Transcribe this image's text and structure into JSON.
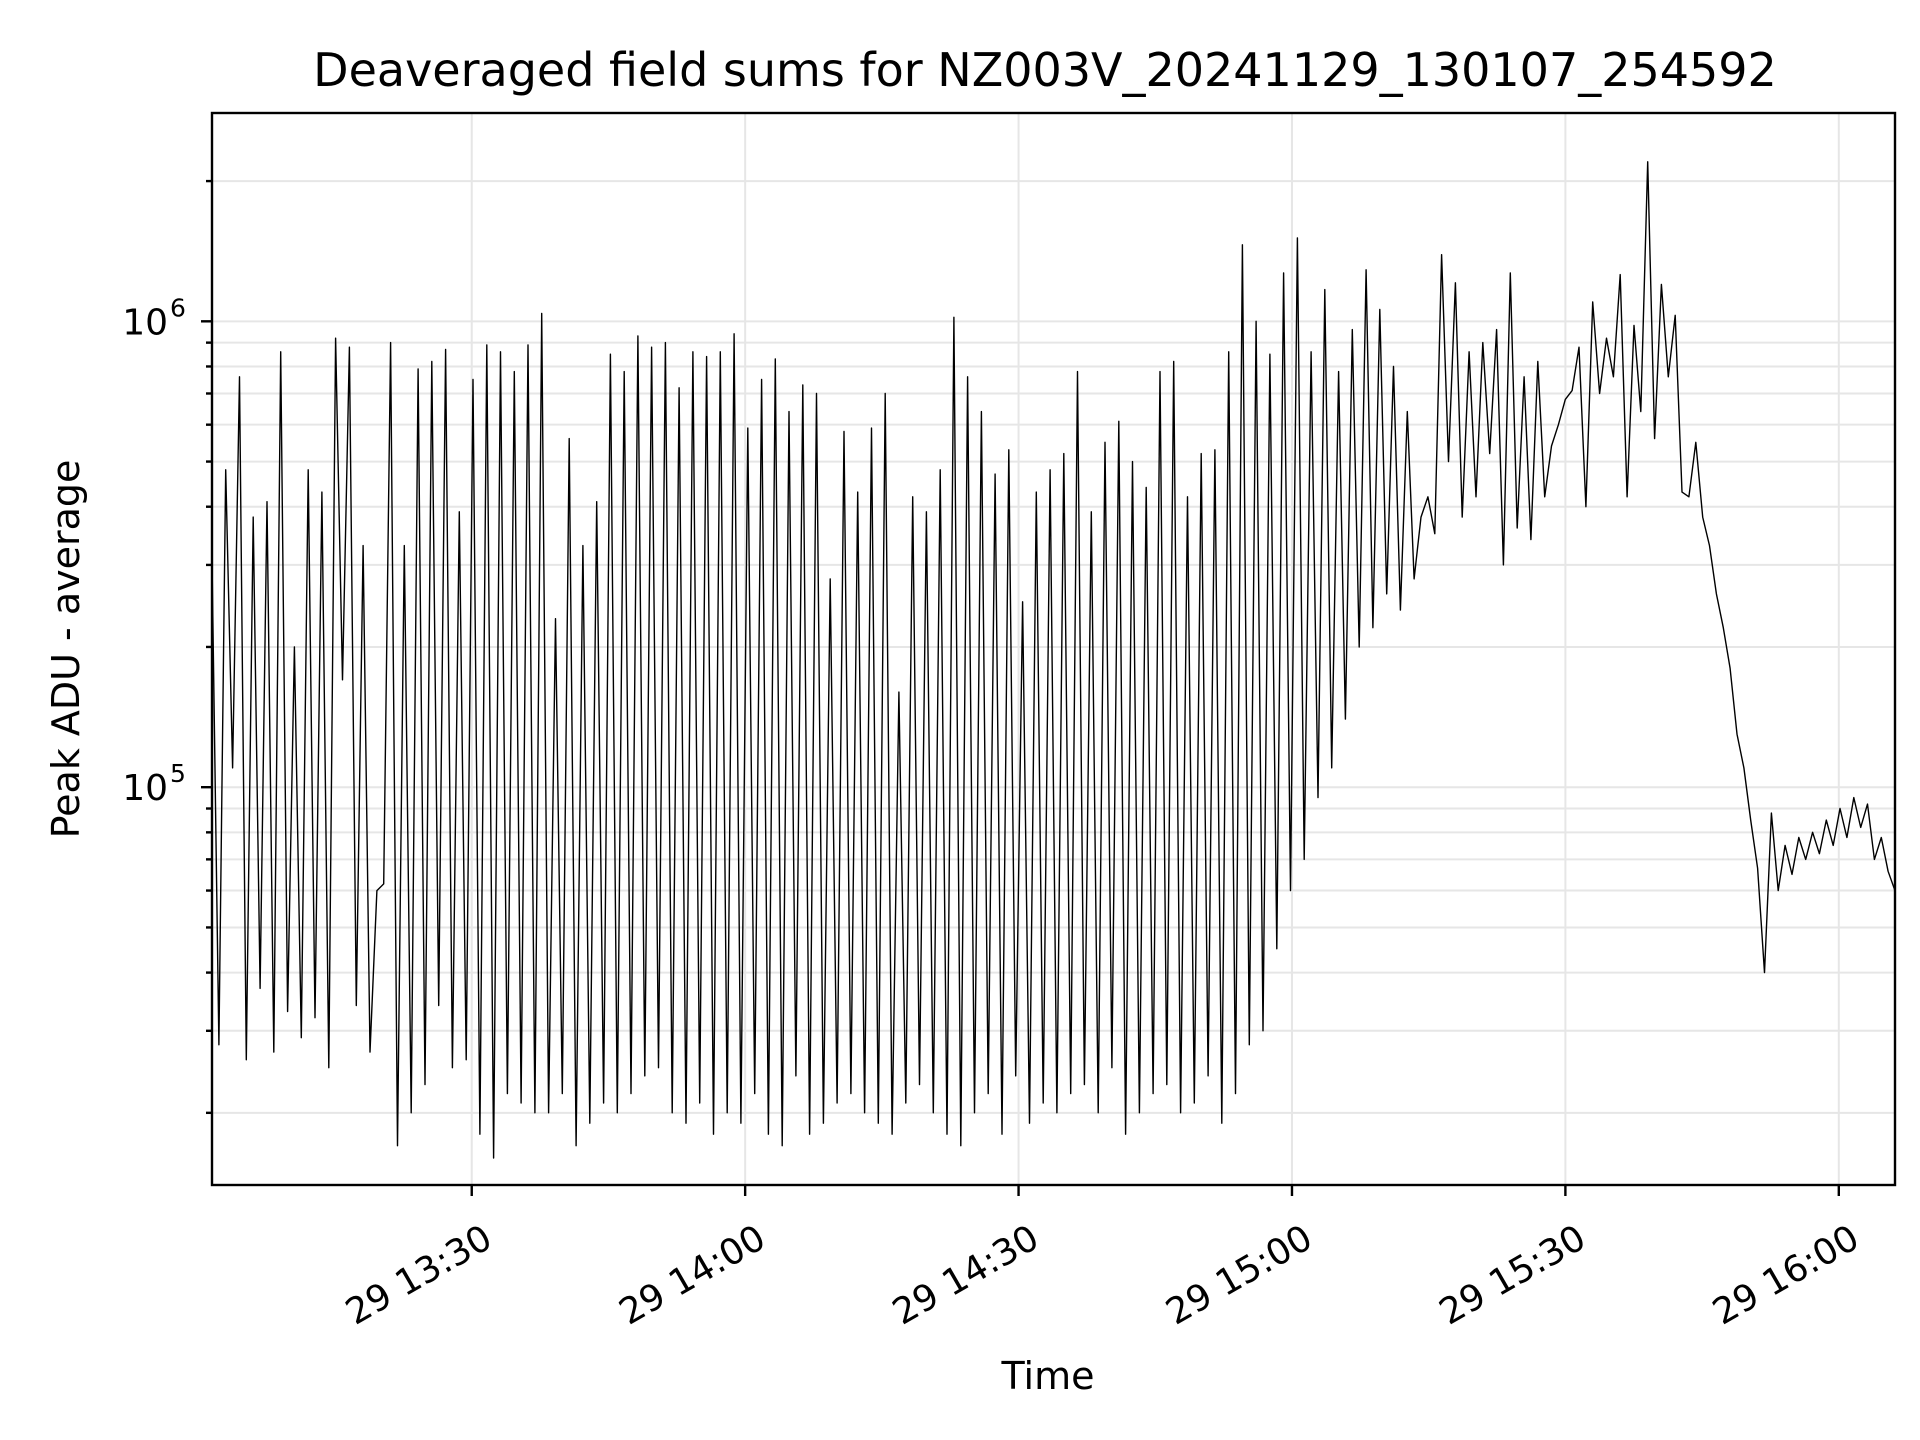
{
  "chart_data": {
    "type": "line",
    "title": "Deaveraged field sums for NZ003V_20241129_130107_254592",
    "xlabel": "Time",
    "ylabel": "Peak ADU - average",
    "yscale": "log",
    "grid": true,
    "legend": "none",
    "colors": {
      "line": "#000000",
      "grid": "#e6e6e6",
      "frame": "#000000"
    },
    "xlim": [
      "2024-11-29 13:01:30",
      "2024-11-29 16:06:10"
    ],
    "ylim": [
      14000,
      2800000
    ],
    "x_ticks": [
      {
        "t": "2024-11-29 13:30",
        "label": "29 13:30"
      },
      {
        "t": "2024-11-29 14:00",
        "label": "29 14:00"
      },
      {
        "t": "2024-11-29 14:30",
        "label": "29 14:30"
      },
      {
        "t": "2024-11-29 15:00",
        "label": "29 15:00"
      },
      {
        "t": "2024-11-29 15:30",
        "label": "29 15:30"
      },
      {
        "t": "2024-11-29 16:00",
        "label": "29 16:00"
      }
    ],
    "y_ticks": [
      {
        "value": 100000,
        "base": "10",
        "exp": "5"
      },
      {
        "value": 1000000,
        "base": "10",
        "exp": "6"
      }
    ],
    "series": [
      {
        "x_start": "2024-11-29 13:01:30",
        "x_end": "2024-11-29 16:06:10",
        "values": [
          310000,
          28000,
          480000,
          110000,
          760000,
          26000,
          380000,
          37000,
          410000,
          27000,
          860000,
          33000,
          200000,
          29000,
          480000,
          32000,
          430000,
          25000,
          920000,
          170000,
          880000,
          34000,
          330000,
          27000,
          60000,
          62000,
          900000,
          17000,
          330000,
          20000,
          790000,
          23000,
          820000,
          34000,
          870000,
          25000,
          390000,
          26000,
          750000,
          18000,
          890000,
          16000,
          860000,
          22000,
          780000,
          21000,
          890000,
          20000,
          1040000,
          20000,
          230000,
          22000,
          560000,
          17000,
          330000,
          19000,
          410000,
          21000,
          850000,
          20000,
          780000,
          22000,
          930000,
          24000,
          880000,
          25000,
          900000,
          20000,
          720000,
          19000,
          860000,
          21000,
          840000,
          18000,
          860000,
          20000,
          940000,
          19000,
          590000,
          22000,
          750000,
          18000,
          830000,
          17000,
          640000,
          24000,
          730000,
          18000,
          700000,
          19000,
          280000,
          21000,
          580000,
          22000,
          430000,
          20000,
          590000,
          19000,
          700000,
          18000,
          160000,
          21000,
          420000,
          23000,
          390000,
          20000,
          480000,
          18000,
          1020000,
          17000,
          760000,
          20000,
          640000,
          22000,
          470000,
          18000,
          530000,
          24000,
          250000,
          19000,
          430000,
          21000,
          480000,
          20000,
          520000,
          22000,
          780000,
          23000,
          390000,
          20000,
          550000,
          25000,
          610000,
          18000,
          500000,
          20000,
          440000,
          22000,
          780000,
          23000,
          820000,
          20000,
          420000,
          21000,
          520000,
          24000,
          530000,
          19000,
          860000,
          22000,
          1460000,
          28000,
          1000000,
          30000,
          850000,
          45000,
          1270000,
          60000,
          1510000,
          70000,
          860000,
          95000,
          1170000,
          110000,
          780000,
          140000,
          960000,
          200000,
          1290000,
          220000,
          1060000,
          260000,
          800000,
          240000,
          640000,
          280000,
          380000,
          420000,
          350000,
          1390000,
          500000,
          1210000,
          380000,
          860000,
          420000,
          900000,
          520000,
          960000,
          300000,
          1270000,
          360000,
          760000,
          340000,
          820000,
          420000,
          540000,
          600000,
          680000,
          710000,
          880000,
          400000,
          1100000,
          700000,
          920000,
          760000,
          1260000,
          420000,
          980000,
          640000,
          2200000,
          560000,
          1200000,
          760000,
          1030000,
          430000,
          420000,
          550000,
          380000,
          330000,
          260000,
          220000,
          180000,
          130000,
          110000,
          85000,
          67000,
          40000,
          88000,
          60000,
          75000,
          65000,
          78000,
          70000,
          80000,
          72000,
          85000,
          75000,
          90000,
          78000,
          95000,
          82000,
          92000,
          70000,
          78000,
          66000,
          60000
        ]
      }
    ]
  }
}
